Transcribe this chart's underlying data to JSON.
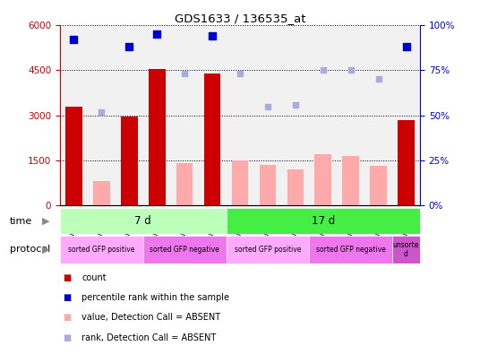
{
  "title": "GDS1633 / 136535_at",
  "samples": [
    "GSM43190",
    "GSM43204",
    "GSM43211",
    "GSM43187",
    "GSM43201",
    "GSM43208",
    "GSM43197",
    "GSM43218",
    "GSM43227",
    "GSM43194",
    "GSM43215",
    "GSM43224",
    "GSM43221"
  ],
  "count_values": [
    3300,
    null,
    2950,
    4550,
    null,
    4400,
    null,
    null,
    null,
    null,
    null,
    null,
    2850
  ],
  "absent_value": [
    null,
    800,
    null,
    null,
    1400,
    null,
    1500,
    1350,
    1200,
    1700,
    1650,
    1300,
    null
  ],
  "percentile_rank": [
    92,
    null,
    88,
    95,
    null,
    94,
    null,
    null,
    null,
    null,
    null,
    null,
    88
  ],
  "absent_rank": [
    null,
    52,
    null,
    null,
    73,
    null,
    73,
    55,
    56,
    75,
    75,
    70,
    null
  ],
  "ylim_left": [
    0,
    6000
  ],
  "ylim_right": [
    0,
    100
  ],
  "yticks_left": [
    0,
    1500,
    3000,
    4500,
    6000
  ],
  "yticks_right": [
    0,
    25,
    50,
    75,
    100
  ],
  "color_count": "#cc0000",
  "color_percentile": "#0000cc",
  "color_absent_value": "#ffaaaa",
  "color_absent_rank": "#aaaadd",
  "time_groups": [
    {
      "label": "7 d",
      "start": 0,
      "end": 6,
      "color": "#bbffbb"
    },
    {
      "label": "17 d",
      "start": 6,
      "end": 13,
      "color": "#44ee44"
    }
  ],
  "protocol_groups": [
    {
      "label": "sorted GFP positive",
      "start": 0,
      "end": 3,
      "color": "#ffaaff"
    },
    {
      "label": "sorted GFP negative",
      "start": 3,
      "end": 6,
      "color": "#ee77ee"
    },
    {
      "label": "sorted GFP positive",
      "start": 6,
      "end": 9,
      "color": "#ffaaff"
    },
    {
      "label": "sorted GFP negative",
      "start": 9,
      "end": 12,
      "color": "#ee77ee"
    },
    {
      "label": "unsorte\nd",
      "start": 12,
      "end": 13,
      "color": "#cc55cc"
    }
  ],
  "legend_items": [
    {
      "label": "count",
      "color": "#cc0000"
    },
    {
      "label": "percentile rank within the sample",
      "color": "#0000cc"
    },
    {
      "label": "value, Detection Call = ABSENT",
      "color": "#ffaaaa"
    },
    {
      "label": "rank, Detection Call = ABSENT",
      "color": "#aaaadd"
    }
  ]
}
